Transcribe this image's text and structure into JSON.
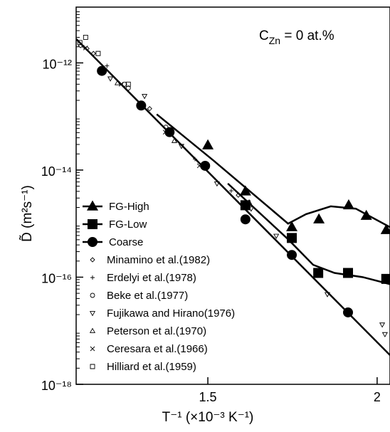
{
  "chart_data": {
    "type": "scatter",
    "annotation": [
      "C",
      "Zn",
      " = 0 at.%"
    ],
    "xlabel": "T⁻¹ (×10⁻³ K⁻¹)",
    "ylabel": "D̃ (m²s⁻¹)",
    "xlim": [
      1.111,
      2.038
    ],
    "xticks": [
      1.5,
      2
    ],
    "ylim": [
      1e-18,
      1.1e-11
    ],
    "log_y": true,
    "yticks": [
      {
        "value": 1e-12,
        "label": "10⁻¹²"
      },
      {
        "value": 1e-14,
        "label": "10⁻¹⁴"
      },
      {
        "value": 1e-16,
        "label": "10⁻¹⁶"
      },
      {
        "value": 1e-18,
        "label": "10⁻¹⁸"
      }
    ],
    "legend": "lower left",
    "series": [
      {
        "name": "FG-High",
        "color": "#000000",
        "marker": "triangle",
        "filled": true,
        "x": [
          1.5,
          1.611,
          1.748,
          1.828,
          1.916,
          1.968,
          2.027
        ],
        "values": [
          2.9e-14,
          4e-15,
          8.6e-16,
          1.2e-15,
          2.2e-15,
          1.4e-15,
          7.6e-16
        ],
        "fit": {
          "x": [
            1.349,
            1.517,
            1.737,
            1.79,
            1.863,
            1.937,
            2.038
          ],
          "y": [
            1.1e-13,
            1.5e-14,
            1e-15,
            1.5e-15,
            2.1e-15,
            1.9e-15,
            8.6e-16
          ]
        }
      },
      {
        "name": "FG-Low",
        "color": "#000000",
        "marker": "square",
        "filled": true,
        "x": [
          1.611,
          1.748,
          1.826,
          1.914,
          2.027
        ],
        "values": [
          2.2e-15,
          5.4e-16,
          1.2e-16,
          1.2e-16,
          9.3e-17
        ],
        "fit": {
          "x": [
            1.559,
            1.737,
            1.811,
            1.874,
            1.958,
            2.038
          ],
          "y": [
            5.6e-15,
            5.1e-16,
            1.7e-16,
            1.2e-16,
            1e-16,
            7.4e-17
          ]
        }
      },
      {
        "name": "Coarse",
        "color": "#000000",
        "marker": "circle",
        "filled": true,
        "x": [
          1.187,
          1.303,
          1.387,
          1.492,
          1.611,
          1.748,
          1.914
        ],
        "values": [
          7.1e-13,
          1.6e-13,
          5.1e-14,
          1.2e-14,
          1.2e-15,
          2.6e-16,
          2.2e-17
        ],
        "fit": {
          "x": [
            1.111,
            2.038
          ],
          "y": [
            2.8e-12,
            3.5e-18
          ]
        }
      },
      {
        "name": "Minamino et al.(1982)",
        "color": "#000000",
        "marker": "diamond",
        "filled": false,
        "x": [
          1.124,
          1.143,
          1.162,
          1.328,
          1.59
        ],
        "values": [
          2.1e-12,
          1.85e-12,
          1.5e-12,
          1.4e-13,
          3.4e-15
        ]
      },
      {
        "name": "Erdelyi et al.(1978)",
        "color": "#000000",
        "marker": "plus",
        "filled": false,
        "x": [
          1.134,
          1.202,
          1.462,
          1.569
        ],
        "values": [
          1.97e-12,
          8.8e-13,
          1.6e-14,
          4.1e-15
        ]
      },
      {
        "name": "Beke et al.(1977)",
        "color": "#000000",
        "marker": "circle",
        "filled": false,
        "x": [
          1.254,
          1.265,
          1.376
        ],
        "values": [
          4e-13,
          3.4e-13,
          6.3e-14
        ]
      },
      {
        "name": "Fujikawa and Hirano(1976)",
        "color": "#000000",
        "marker": "triangle-down",
        "filled": false,
        "x": [
          1.212,
          1.313,
          1.422,
          1.527,
          1.628,
          1.702,
          1.853,
          2.015,
          2.023
        ],
        "values": [
          5.1e-13,
          2.4e-13,
          2.8e-14,
          5.6e-15,
          1.9e-15,
          5.9e-16,
          4.8e-17,
          1.3e-17,
          8.6e-18
        ]
      },
      {
        "name": "Peterson et al.(1970)",
        "color": "#000000",
        "marker": "triangle",
        "filled": false,
        "x": [
          1.233,
          1.401,
          1.622
        ],
        "values": [
          4.2e-13,
          3.5e-14,
          2.5e-15
        ]
      },
      {
        "name": "Ceresara et al.(1966)",
        "color": "#000000",
        "marker": "cross",
        "filled": false,
        "x": [
          1.139,
          1.244,
          1.374,
          1.475
        ],
        "values": [
          1.9e-12,
          4e-13,
          5.1e-14,
          1.2e-14
        ]
      },
      {
        "name": "Hilliard et al.(1959)",
        "color": "#000000",
        "marker": "square",
        "filled": false,
        "x": [
          1.122,
          1.139,
          1.176,
          1.265
        ],
        "values": [
          2.4e-12,
          3e-12,
          1.5e-12,
          4e-13
        ]
      }
    ]
  }
}
